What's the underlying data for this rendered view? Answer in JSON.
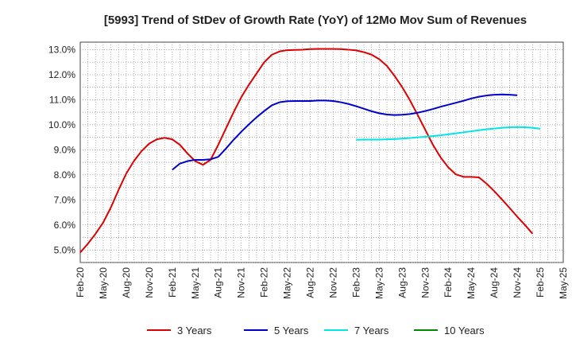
{
  "chart_data": {
    "type": "line",
    "title": "[5993]  Trend of StDev of Growth Rate (YoY) of 12Mo Mov Sum of Revenues",
    "xlabel": "",
    "ylabel": "",
    "ylim": [
      4.5,
      13.3
    ],
    "ytick_values": [
      5.0,
      6.0,
      7.0,
      8.0,
      9.0,
      10.0,
      11.0,
      12.0,
      13.0
    ],
    "ytick_labels": [
      "5.0%",
      "6.0%",
      "7.0%",
      "8.0%",
      "9.0%",
      "10.0%",
      "11.0%",
      "12.0%",
      "13.0%"
    ],
    "xtick_labels": [
      "Feb-20",
      "May-20",
      "Aug-20",
      "Nov-20",
      "Feb-21",
      "May-21",
      "Aug-21",
      "Nov-21",
      "Feb-22",
      "May-22",
      "Aug-22",
      "Nov-22",
      "Feb-23",
      "May-23",
      "Aug-23",
      "Nov-23",
      "Feb-24",
      "May-24",
      "Aug-24",
      "Nov-24",
      "Feb-25",
      "May-25"
    ],
    "x_start": "Feb-20",
    "x_step_months": 1,
    "grid": true,
    "legend_position": "bottom",
    "series": [
      {
        "name": "3 Years",
        "color": "#dd0000",
        "start_index": 0,
        "values": [
          4.9,
          5.25,
          5.65,
          6.1,
          6.7,
          7.4,
          8.05,
          8.55,
          8.95,
          9.25,
          9.42,
          9.48,
          9.42,
          9.2,
          8.85,
          8.55,
          8.4,
          8.6,
          9.2,
          9.85,
          10.5,
          11.1,
          11.6,
          12.05,
          12.5,
          12.8,
          12.93,
          12.98,
          12.99,
          13.0,
          13.02,
          13.03,
          13.03,
          13.03,
          13.02,
          13.0,
          12.97,
          12.9,
          12.8,
          12.62,
          12.35,
          11.95,
          11.5,
          10.98,
          10.4,
          9.8,
          9.2,
          8.7,
          8.3,
          8.02,
          7.92,
          7.92,
          7.9,
          7.65,
          7.35,
          7.02,
          6.68,
          6.33,
          6.0,
          5.65
        ]
      },
      {
        "name": "5 Years",
        "color": "#0000cc",
        "start_index": 12,
        "values": [
          8.2,
          8.45,
          8.55,
          8.6,
          8.6,
          8.62,
          8.72,
          9.05,
          9.4,
          9.72,
          10.02,
          10.3,
          10.55,
          10.78,
          10.9,
          10.94,
          10.95,
          10.95,
          10.95,
          10.97,
          10.97,
          10.95,
          10.9,
          10.83,
          10.74,
          10.64,
          10.54,
          10.46,
          10.41,
          10.39,
          10.4,
          10.43,
          10.48,
          10.55,
          10.63,
          10.72,
          10.8,
          10.88,
          10.96,
          11.05,
          11.12,
          11.17,
          11.2,
          11.21,
          11.2,
          11.18
        ]
      },
      {
        "name": "7 Years",
        "color": "#00e5e5",
        "start_index": 36,
        "values": [
          9.4,
          9.41,
          9.41,
          9.41,
          9.42,
          9.43,
          9.45,
          9.47,
          9.5,
          9.52,
          9.55,
          9.58,
          9.62,
          9.66,
          9.7,
          9.74,
          9.78,
          9.82,
          9.85,
          9.88,
          9.9,
          9.91,
          9.9,
          9.88,
          9.84
        ]
      },
      {
        "name": "10 Years",
        "color": "#008800",
        "start_index": 0,
        "values": []
      }
    ]
  }
}
